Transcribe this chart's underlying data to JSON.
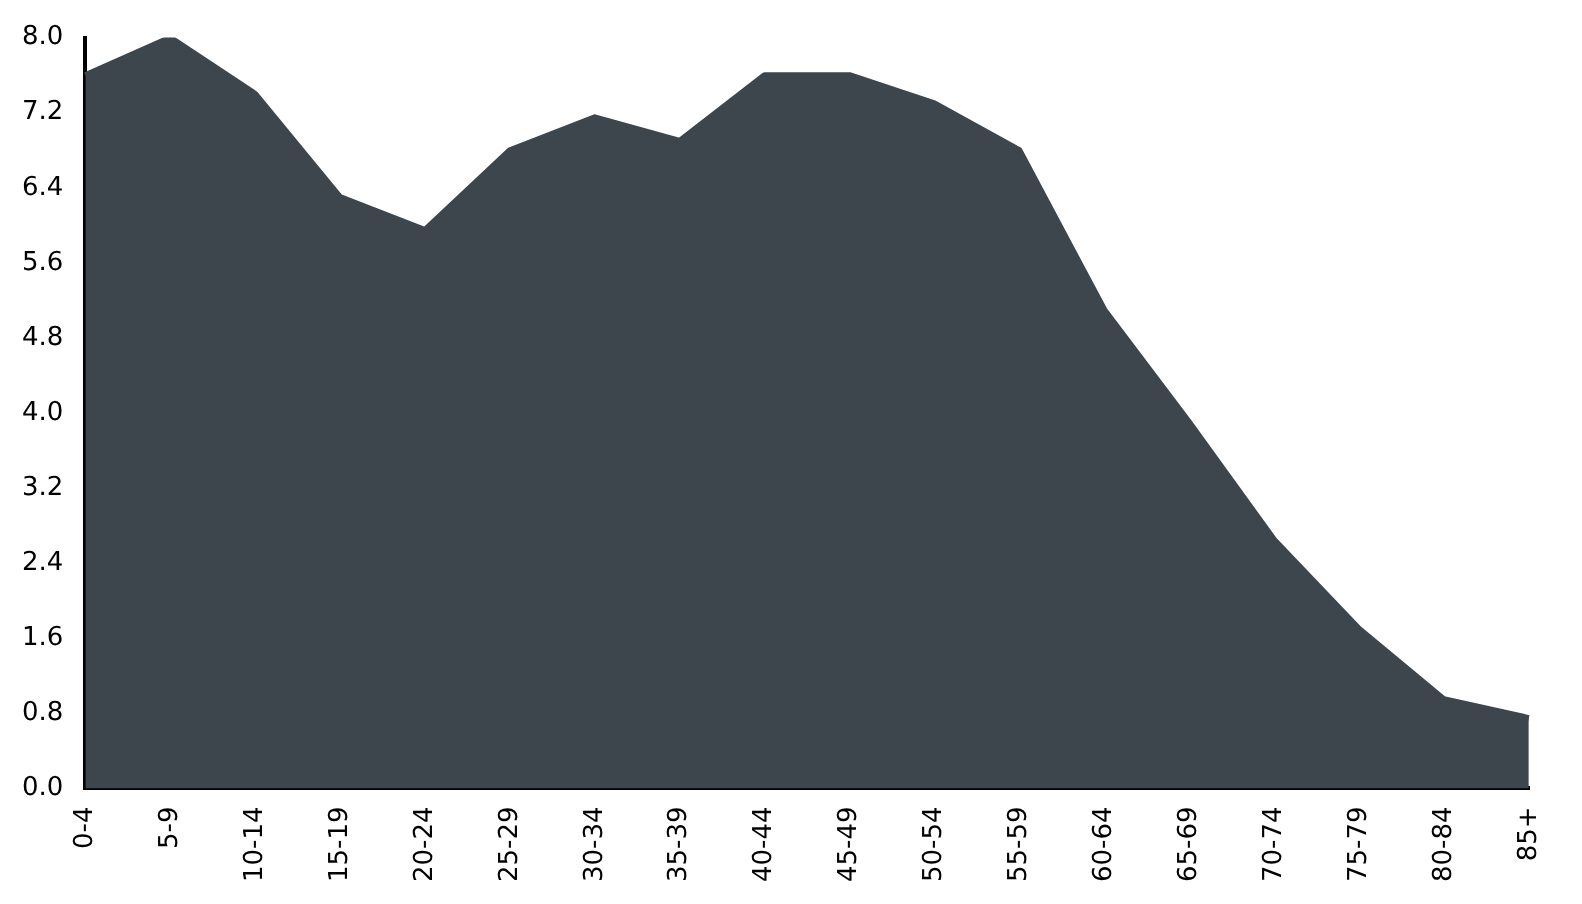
{
  "chart_data": {
    "type": "area",
    "categories": [
      "0-4",
      "5-9",
      "10-14",
      "15-19",
      "20-24",
      "25-29",
      "30-34",
      "35-39",
      "40-44",
      "45-49",
      "50-54",
      "55-59",
      "60-64",
      "65-69",
      "70-74",
      "75-79",
      "80-84",
      "85+"
    ],
    "series": [
      {
        "color": "#3d464d",
        "values": [
          7.6,
          8.0,
          7.4,
          6.3,
          5.95,
          6.8,
          7.15,
          6.9,
          7.6,
          7.6,
          7.3,
          6.8,
          5.1,
          3.9,
          2.65,
          1.7,
          0.95,
          0.75
        ]
      }
    ],
    "ylim": [
      0,
      8
    ],
    "yticks": [
      {
        "value": 0,
        "label": "0.0"
      },
      {
        "value": 0.8,
        "label": "0.8"
      },
      {
        "value": 1.6,
        "label": "1.6"
      },
      {
        "value": 2.4,
        "label": "2.4"
      },
      {
        "value": 3.2,
        "label": "3.2"
      },
      {
        "value": 4,
        "label": "4.0"
      },
      {
        "value": 4.8,
        "label": "4.8"
      },
      {
        "value": 5.6,
        "label": "5.6"
      },
      {
        "value": 6.4,
        "label": "6.4"
      },
      {
        "value": 7.2,
        "label": "7.2"
      },
      {
        "value": 8,
        "label": "8.0"
      }
    ],
    "grid": false,
    "legend": false
  }
}
